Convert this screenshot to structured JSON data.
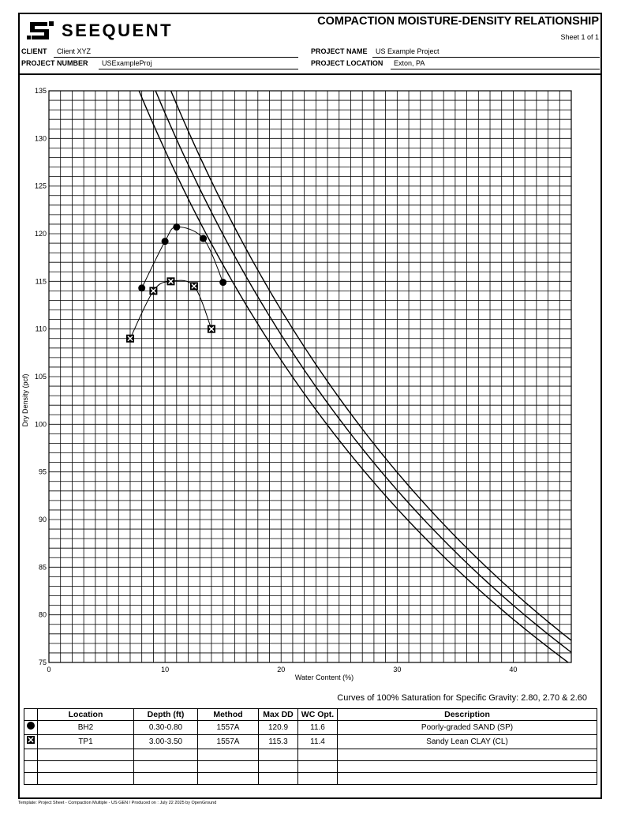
{
  "header": {
    "logo_text": "SEEQUENT",
    "title": "COMPACTION MOISTURE-DENSITY RELATIONSHIP",
    "sheet": "Sheet 1 of 1",
    "client_label": "CLIENT",
    "client_value": "Client XYZ",
    "project_name_label": "PROJECT NAME",
    "project_name_value": "US Example Project",
    "project_number_label": "PROJECT NUMBER",
    "project_number_value": "USExampleProj",
    "project_location_label": "PROJECT LOCATION",
    "project_location_value": "Exton, PA"
  },
  "chart_data": {
    "type": "scatter",
    "xlabel": "Water Content (%)",
    "ylabel": "Dry Density (pcf)",
    "xlim": [
      0,
      45
    ],
    "ylim": [
      75,
      135
    ],
    "x_ticks": [
      0,
      10,
      20,
      30,
      40
    ],
    "y_ticks": [
      75,
      80,
      85,
      90,
      95,
      100,
      105,
      110,
      115,
      120,
      125,
      130,
      135
    ],
    "grid": true,
    "series": [
      {
        "marker": "circle",
        "x": [
          8.0,
          10.0,
          11.0,
          13.3,
          15.0
        ],
        "y": [
          114.3,
          119.2,
          120.7,
          119.5,
          114.9
        ]
      },
      {
        "marker": "boxed-x",
        "x": [
          7.0,
          9.0,
          10.5,
          12.5,
          14.0
        ],
        "y": [
          109.0,
          114.0,
          115.0,
          114.5,
          110.0
        ]
      }
    ],
    "saturation_curves": {
      "specific_gravity": [
        2.8,
        2.7,
        2.6
      ],
      "unit_weight_water": 62.4
    },
    "caption": "Curves of 100% Saturation for Specific Gravity: 2.80, 2.70 & 2.60"
  },
  "table": {
    "headers": [
      "Location",
      "Depth (ft)",
      "Method",
      "Max DD",
      "WC Opt.",
      "Description"
    ],
    "rows": [
      {
        "symbol": "circle",
        "location": "BH2",
        "depth": "0.30-0.80",
        "method": "1557A",
        "max_dd": "120.9",
        "wc_opt": "11.6",
        "description": "Poorly-graded SAND (SP)"
      },
      {
        "symbol": "boxed-x",
        "location": "TP1",
        "depth": "3.00-3.50",
        "method": "1557A",
        "max_dd": "115.3",
        "wc_opt": "11.4",
        "description": "Sandy Lean CLAY (CL)"
      }
    ],
    "empty_rows": 3
  },
  "footer": "Template: Project Sheet - Compaction Multiple - US GEN / Produced on : July 22 2025 by OpenGround"
}
